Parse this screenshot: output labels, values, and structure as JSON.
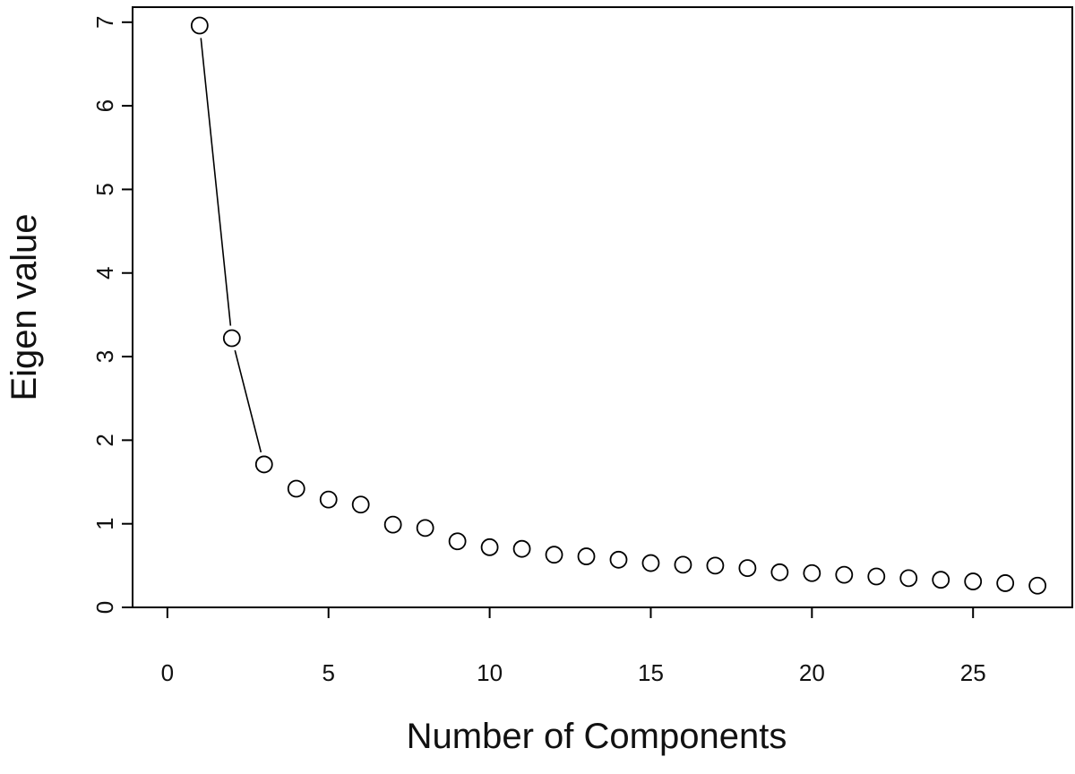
{
  "chart_data": {
    "type": "scatter",
    "x_label": "Number of Components",
    "y_label": "Eigen value",
    "x": [
      1,
      2,
      3,
      4,
      5,
      6,
      7,
      8,
      9,
      10,
      11,
      12,
      13,
      14,
      15,
      16,
      17,
      18,
      19,
      20,
      21,
      22,
      23,
      24,
      25,
      26,
      27
    ],
    "values": [
      6.96,
      3.22,
      1.71,
      1.42,
      1.29,
      1.23,
      0.99,
      0.95,
      0.79,
      0.72,
      0.7,
      0.63,
      0.61,
      0.57,
      0.53,
      0.51,
      0.5,
      0.47,
      0.42,
      0.41,
      0.39,
      0.37,
      0.35,
      0.33,
      0.31,
      0.29,
      0.26
    ],
    "connected_count": 3,
    "color": "#000000",
    "xlim": [
      -1.08,
      28.08
    ],
    "ylim": [
      0,
      7.18
    ],
    "xticks": [
      0,
      5,
      10,
      15,
      20,
      25
    ],
    "yticks": [
      0,
      1,
      2,
      3,
      4,
      5,
      6,
      7
    ]
  }
}
